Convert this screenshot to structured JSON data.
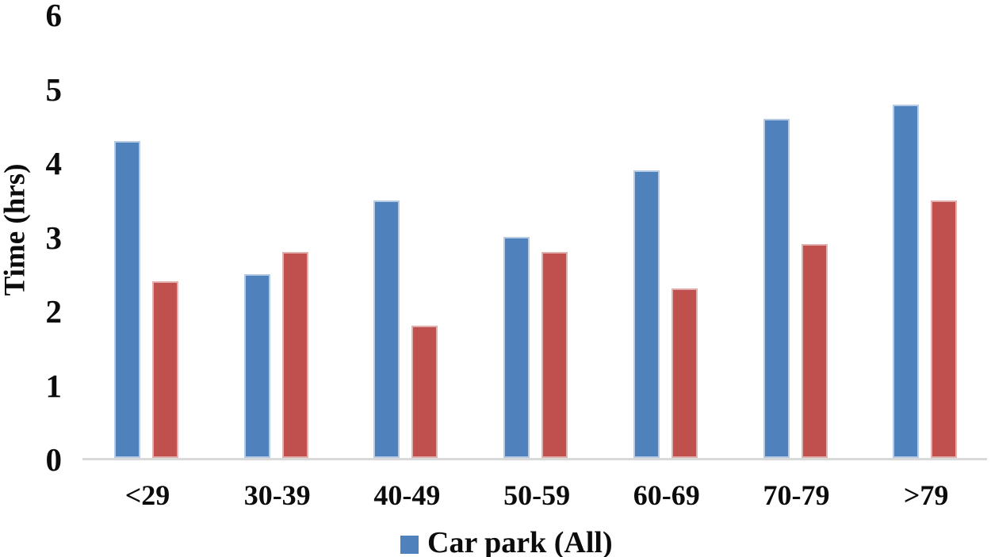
{
  "chart_data": {
    "type": "bar",
    "title": "",
    "categories": [
      "<29",
      "30-39",
      "40-49",
      "50-59",
      "60-69",
      "70-79",
      ">79"
    ],
    "series": [
      {
        "name": "Car park (All)",
        "color": "#4F81BD",
        "values": [
          4.3,
          2.5,
          3.5,
          3.0,
          3.9,
          4.6,
          4.8
        ]
      },
      {
        "name": "",
        "color": "#C0504D",
        "values": [
          2.4,
          2.8,
          1.8,
          2.8,
          2.3,
          2.9,
          3.5
        ]
      }
    ],
    "xlabel": "",
    "ylabel": "Time (hrs)",
    "ylim": [
      0,
      6
    ],
    "yticks": [
      0,
      1,
      2,
      3,
      4,
      5,
      6
    ],
    "grid": false,
    "legend_position": "bottom-center",
    "legend_entries": [
      {
        "label": "Car park (All)",
        "color": "#4F81BD"
      }
    ],
    "colors": {
      "axis_line": "#D9D9D9",
      "text": "#0C0C0C",
      "background": "#FFFFFF"
    }
  }
}
